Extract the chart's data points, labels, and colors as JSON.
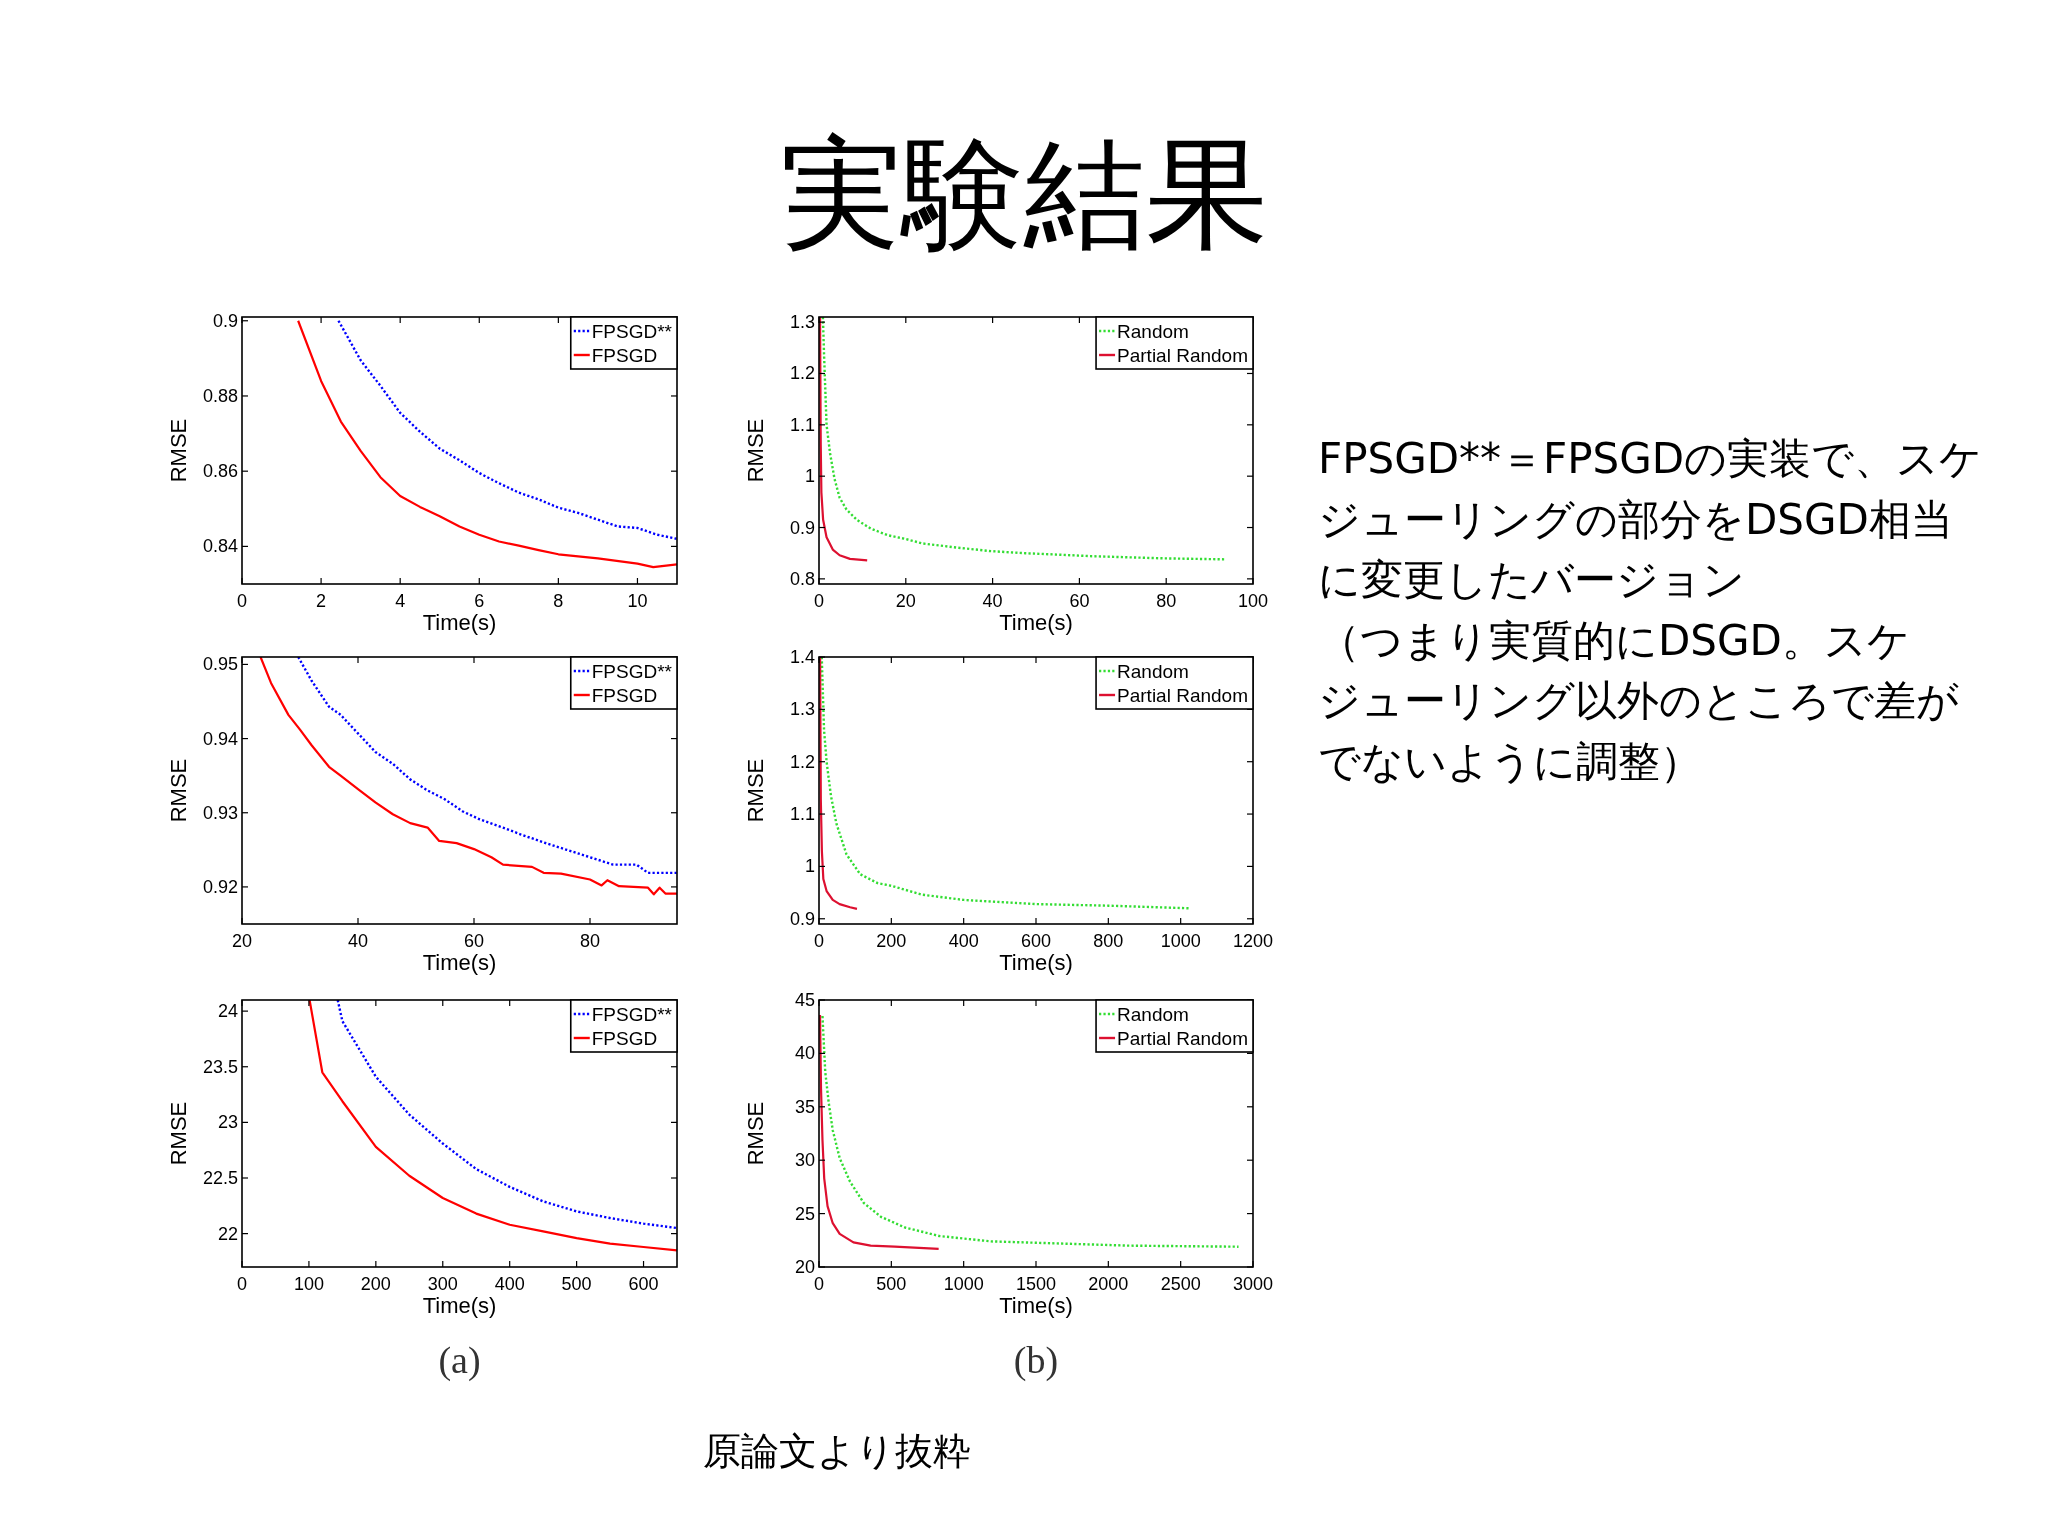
{
  "chart_data": [
    {
      "type": "other",
      "title": "実験結果",
      "annotations": [
        "FPSGD**＝FPSGDの実装で、スケ",
        "ジューリングの部分をDSGD相当",
        "に変更したバージョン",
        "（つまり実質的にDSGD。スケ",
        "ジューリング以外のところで差が",
        "でないように調整）",
        "原論文より抜粋"
      ]
    },
    {
      "type": "line",
      "xlabel": "Time(s)",
      "ylabel": "RMSE",
      "xlim": [
        0,
        11
      ],
      "ylim": [
        0.83,
        0.901
      ],
      "xticks": [
        0,
        2,
        4,
        6,
        8,
        10
      ],
      "yticks": [
        0.84,
        0.86,
        0.88,
        0.9
      ],
      "legend": "top right",
      "series": [
        {
          "name": "FPSGD**",
          "color": "#0000ff",
          "line_style": "dotted",
          "x": [
            2.44,
            3,
            3.5,
            4,
            4.5,
            5,
            5.5,
            6,
            6.5,
            7,
            7.5,
            8,
            8.5,
            9,
            9.5,
            10,
            10.5,
            11
          ],
          "values": [
            0.9,
            0.8895,
            0.8827,
            0.8755,
            0.8705,
            0.866,
            0.8629,
            0.8595,
            0.8568,
            0.8543,
            0.8525,
            0.8503,
            0.8489,
            0.8471,
            0.8453,
            0.8449,
            0.8431,
            0.842
          ]
        },
        {
          "name": "FPSGD",
          "color": "#ff0000",
          "line_style": "solid",
          "x": [
            1.42,
            2,
            2.5,
            3,
            3.5,
            4,
            4.5,
            5,
            5.5,
            6,
            6.5,
            7,
            7.5,
            8,
            9,
            10,
            10.4,
            11
          ],
          "values": [
            0.9,
            0.884,
            0.8732,
            0.8654,
            0.8584,
            0.8534,
            0.8505,
            0.848,
            0.8453,
            0.8431,
            0.8413,
            0.8402,
            0.839,
            0.8379,
            0.8368,
            0.8354,
            0.8345,
            0.8352
          ]
        }
      ]
    },
    {
      "type": "line",
      "xlabel": "Time(s)",
      "ylabel": "RMSE",
      "xlim": [
        0,
        100
      ],
      "ylim": [
        0.79,
        1.31
      ],
      "xticks": [
        0,
        20,
        40,
        60,
        80,
        100
      ],
      "yticks": [
        0.8,
        0.9,
        1,
        1.1,
        1.2,
        1.3
      ],
      "legend": "top right",
      "series": [
        {
          "name": "Random",
          "color": "#33dd33",
          "line_style": "dotted",
          "x": [
            0.9,
            1.19,
            1.74,
            2.54,
            3.57,
            4.75,
            6.34,
            8.72,
            11.9,
            15.8,
            19.8,
            23.8,
            31.7,
            39.6,
            47.5,
            55.5,
            63.4,
            71.3,
            79.2,
            93.5
          ],
          "values": [
            1.31,
            1.23,
            1.1,
            1.045,
            0.995,
            0.958,
            0.935,
            0.915,
            0.898,
            0.885,
            0.878,
            0.869,
            0.861,
            0.854,
            0.85,
            0.847,
            0.844,
            0.842,
            0.84,
            0.838
          ]
        },
        {
          "name": "Partial Random",
          "color": "#dd1030",
          "line_style": "solid",
          "x": [
            0.24,
            0.4,
            0.55,
            0.95,
            1.74,
            3.17,
            4.75,
            7.13,
            11.1
          ],
          "values": [
            1.31,
            1.062,
            0.968,
            0.915,
            0.881,
            0.857,
            0.846,
            0.839,
            0.836
          ]
        }
      ]
    },
    {
      "type": "line",
      "xlabel": "Time(s)",
      "ylabel": "RMSE",
      "xlim": [
        20,
        95
      ],
      "ylim": [
        0.915,
        0.951
      ],
      "xticks": [
        20,
        40,
        60,
        80
      ],
      "yticks": [
        0.92,
        0.93,
        0.94,
        0.95
      ],
      "legend": "top right",
      "series": [
        {
          "name": "FPSGD**",
          "color": "#0000ff",
          "line_style": "dotted",
          "x": [
            29.7,
            32,
            35,
            37,
            40,
            43,
            46,
            49,
            52,
            55,
            58,
            61,
            65,
            68,
            72,
            76,
            80,
            84,
            88,
            90,
            95
          ],
          "values": [
            0.951,
            0.9478,
            0.9443,
            0.9432,
            0.9407,
            0.9382,
            0.9366,
            0.9345,
            0.933,
            0.9318,
            0.9302,
            0.9291,
            0.928,
            0.9271,
            0.926,
            0.925,
            0.924,
            0.923,
            0.923,
            0.9219,
            0.9219
          ]
        },
        {
          "name": "FPSGD",
          "color": "#ff0000",
          "line_style": "solid",
          "x": [
            23.2,
            25,
            28,
            30,
            32,
            35,
            37,
            40,
            43,
            46,
            49,
            52,
            54,
            57,
            60,
            63,
            65,
            70,
            72,
            75,
            80,
            82,
            83,
            85,
            90,
            91,
            92,
            93,
            95
          ],
          "values": [
            0.951,
            0.9475,
            0.9432,
            0.9412,
            0.9391,
            0.9362,
            0.935,
            0.9332,
            0.9314,
            0.9298,
            0.9286,
            0.928,
            0.9262,
            0.9259,
            0.9251,
            0.924,
            0.923,
            0.9227,
            0.9219,
            0.9218,
            0.921,
            0.9202,
            0.9209,
            0.9201,
            0.9199,
            0.919,
            0.9199,
            0.9191,
            0.9191
          ]
        }
      ]
    },
    {
      "type": "line",
      "xlabel": "Time(s)",
      "ylabel": "RMSE",
      "xlim": [
        0,
        1200
      ],
      "ylim": [
        0.89,
        1.4
      ],
      "xticks": [
        0,
        200,
        400,
        600,
        800,
        1000,
        1200
      ],
      "yticks": [
        0.9,
        1,
        1.1,
        1.2,
        1.3,
        1.4
      ],
      "legend": "top right",
      "series": [
        {
          "name": "Random",
          "color": "#33dd33",
          "line_style": "dotted",
          "x": [
            7.6,
            14,
            21,
            33,
            48,
            76,
            114,
            162,
            200,
            285,
            400,
            600,
            800,
            1023
          ],
          "values": [
            1.4,
            1.26,
            1.2,
            1.135,
            1.082,
            1.023,
            0.985,
            0.968,
            0.963,
            0.946,
            0.936,
            0.928,
            0.925,
            0.92
          ]
        },
        {
          "name": "Partial Random",
          "color": "#dd1030",
          "line_style": "solid",
          "x": [
            3,
            5,
            8,
            12,
            21,
            38,
            57,
            86,
            105
          ],
          "values": [
            1.4,
            1.128,
            1.029,
            0.976,
            0.953,
            0.936,
            0.928,
            0.922,
            0.919
          ]
        }
      ]
    },
    {
      "type": "line",
      "xlabel": "Time(s)",
      "ylabel": "RMSE",
      "xlim": [
        0,
        650
      ],
      "ylim": [
        21.7,
        24.1
      ],
      "xticks": [
        0,
        100,
        200,
        300,
        400,
        500,
        600
      ],
      "yticks": [
        22,
        22.5,
        23,
        23.5,
        24
      ],
      "legend": "top right",
      "annotations": [
        "(a)"
      ],
      "series": [
        {
          "name": "FPSGD**",
          "color": "#0000ff",
          "line_style": "dotted",
          "x": [
            143,
            150,
            200,
            250,
            300,
            350,
            400,
            450,
            500,
            550,
            600,
            650
          ],
          "values": [
            24.1,
            23.91,
            23.41,
            23.07,
            22.81,
            22.58,
            22.42,
            22.29,
            22.2,
            22.14,
            22.09,
            22.05
          ]
        },
        {
          "name": "FPSGD",
          "color": "#ff0000",
          "line_style": "solid",
          "x": [
            101,
            120,
            150,
            200,
            250,
            300,
            350,
            400,
            450,
            500,
            550,
            600,
            650
          ],
          "values": [
            24.1,
            23.45,
            23.19,
            22.78,
            22.52,
            22.32,
            22.18,
            22.08,
            22.02,
            21.96,
            21.91,
            21.88,
            21.85
          ]
        }
      ]
    },
    {
      "type": "line",
      "xlabel": "Time(s)",
      "ylabel": "RMSE",
      "xlim": [
        0,
        3000
      ],
      "ylim": [
        20,
        45
      ],
      "xticks": [
        0,
        500,
        1000,
        1500,
        2000,
        2500,
        3000
      ],
      "yticks": [
        20,
        25,
        30,
        35,
        40,
        45
      ],
      "legend": "top right",
      "annotations": [
        "(b)"
      ],
      "series": [
        {
          "name": "Random",
          "color": "#33dd33",
          "line_style": "dotted",
          "x": [
            24,
            43,
            67,
            95,
            143,
            214,
            309,
            428,
            594,
            832,
            1188,
            1664,
            2139,
            2900
          ],
          "values": [
            43.5,
            38.3,
            35.4,
            32.8,
            30.2,
            28,
            26,
            24.7,
            23.7,
            22.9,
            22.4,
            22.2,
            22,
            21.9
          ]
        },
        {
          "name": "Partial Random",
          "color": "#dd1030",
          "line_style": "solid",
          "x": [
            7,
            14,
            24,
            36,
            59,
            95,
            143,
            238,
            357,
            523,
            827
          ],
          "values": [
            43.6,
            36.7,
            31.9,
            28.3,
            25.7,
            24.1,
            23.1,
            22.3,
            22,
            21.9,
            21.7
          ]
        }
      ]
    }
  ]
}
